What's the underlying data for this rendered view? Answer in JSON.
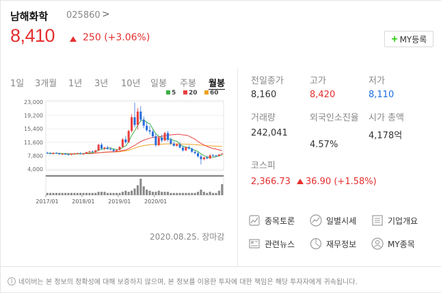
{
  "header": {
    "name": "남해화학",
    "code": "025860",
    "chevron": ">"
  },
  "price": {
    "current": "8,410",
    "change": "250",
    "change_pct": "(+3.06%)",
    "direction_color": "#e52e2e"
  },
  "my_button": {
    "plus": "+",
    "label": "MY등록"
  },
  "tabs": [
    {
      "label": "1일"
    },
    {
      "label": "3개월"
    },
    {
      "label": "1년"
    },
    {
      "label": "3년"
    },
    {
      "label": "10년"
    },
    {
      "label": "일봉"
    },
    {
      "label": "주봉"
    },
    {
      "label": "월봉"
    }
  ],
  "selected_tab": "월봉",
  "legend": [
    {
      "label": "5",
      "color": "#3cb044"
    },
    {
      "label": "20",
      "color": "#e84040"
    },
    {
      "label": "60",
      "color": "#f0a020"
    }
  ],
  "chart_data": {
    "type": "candlestick",
    "y_ticks": [
      "23,000",
      "19,200",
      "15,400",
      "11,600",
      "7,800",
      "4,000"
    ],
    "ylim": [
      4000,
      23000
    ],
    "x_ticks": [
      "2017/01",
      "2018/01",
      "2019/01",
      "2020/01"
    ],
    "series_note": "monthly candles with 5/20/60 moving averages",
    "ohlc": [
      [
        8600,
        8900,
        8300,
        8500
      ],
      [
        8500,
        8800,
        8200,
        8300
      ],
      [
        8300,
        8700,
        8100,
        8600
      ],
      [
        8600,
        8800,
        8300,
        8400
      ],
      [
        8400,
        8700,
        8100,
        8200
      ],
      [
        8200,
        8500,
        8000,
        8300
      ],
      [
        8300,
        8600,
        8100,
        8200
      ],
      [
        8200,
        8400,
        7900,
        8100
      ],
      [
        8100,
        8400,
        7900,
        8300
      ],
      [
        8300,
        8600,
        8100,
        8400
      ],
      [
        8400,
        8700,
        8200,
        8500
      ],
      [
        8500,
        8800,
        8200,
        8300
      ],
      [
        8300,
        8600,
        8000,
        8400
      ],
      [
        8400,
        8900,
        8300,
        8800
      ],
      [
        8800,
        9200,
        8600,
        9000
      ],
      [
        9000,
        9300,
        8700,
        8800
      ],
      [
        8800,
        9400,
        8700,
        9300
      ],
      [
        9300,
        11200,
        9100,
        10900
      ],
      [
        10900,
        11400,
        9600,
        9800
      ],
      [
        9800,
        10300,
        9300,
        10100
      ],
      [
        10100,
        10600,
        9500,
        9700
      ],
      [
        9700,
        10200,
        9300,
        9500
      ],
      [
        9500,
        9900,
        8900,
        9100
      ],
      [
        9100,
        9600,
        8800,
        9400
      ],
      [
        9400,
        10500,
        9300,
        10300
      ],
      [
        10300,
        12800,
        10100,
        12400
      ],
      [
        12400,
        13300,
        11200,
        11600
      ],
      [
        11600,
        15200,
        11400,
        14800
      ],
      [
        14800,
        19600,
        14400,
        18700
      ],
      [
        18700,
        22800,
        15800,
        16500
      ],
      [
        16500,
        21300,
        15200,
        20300
      ],
      [
        20300,
        21800,
        17400,
        18000
      ],
      [
        18000,
        18900,
        15600,
        16300
      ],
      [
        16300,
        17400,
        14600,
        15000
      ],
      [
        15000,
        16200,
        13800,
        14600
      ],
      [
        14600,
        15100,
        12800,
        13300
      ],
      [
        13300,
        14100,
        10300,
        10800
      ],
      [
        10800,
        13400,
        10500,
        12900
      ],
      [
        12900,
        13800,
        11600,
        12100
      ],
      [
        12100,
        14600,
        11900,
        14200
      ],
      [
        14200,
        14800,
        11800,
        12300
      ],
      [
        12300,
        12900,
        10900,
        11200
      ],
      [
        11200,
        11800,
        10400,
        10600
      ],
      [
        10600,
        11300,
        10300,
        11000
      ],
      [
        11000,
        11600,
        9800,
        10100
      ],
      [
        10100,
        10600,
        9000,
        9300
      ],
      [
        9300,
        10400,
        9100,
        10200
      ],
      [
        10200,
        10700,
        9500,
        9800
      ],
      [
        9800,
        10100,
        8600,
        8900
      ],
      [
        8900,
        9300,
        8200,
        8500
      ],
      [
        8500,
        8900,
        7300,
        7600
      ],
      [
        7600,
        8100,
        5300,
        6800
      ],
      [
        6800,
        7500,
        6500,
        7300
      ],
      [
        7300,
        7800,
        6800,
        7000
      ],
      [
        7000,
        8200,
        6900,
        7900
      ],
      [
        7900,
        8300,
        7500,
        7800
      ],
      [
        7800,
        8100,
        7400,
        7700
      ],
      [
        7700,
        8200,
        7600,
        8160
      ],
      [
        8160,
        8420,
        8110,
        8410
      ]
    ],
    "volume": [
      2,
      2,
      2,
      2,
      2,
      2,
      2,
      2,
      2,
      2,
      2,
      2,
      2,
      2,
      2,
      2,
      2,
      3,
      3,
      3,
      2,
      2,
      2,
      2,
      2,
      3,
      4,
      3,
      4,
      6,
      9,
      15,
      8,
      5,
      4,
      3,
      3,
      4,
      3,
      3,
      3,
      2,
      2,
      2,
      2,
      2,
      2,
      2,
      2,
      2,
      3,
      5,
      3,
      2,
      3,
      2,
      2,
      4,
      10
    ],
    "ma5_color": "#3cb044",
    "ma20_color": "#e84040",
    "ma60_color": "#f0a020"
  },
  "date_note": "2020.08.25. 장마감",
  "stats": [
    {
      "label": "전일종가",
      "value": "8,160",
      "color": "#333333"
    },
    {
      "label": "고가",
      "value": "8,420",
      "color": "#e52e2e"
    },
    {
      "label": "저가",
      "value": "8,110",
      "color": "#1d6fe0"
    },
    {
      "label": "거래량",
      "value": "242,041",
      "color": "#333333"
    },
    {
      "label": "외국인소진율",
      "value": "4.57%",
      "color": "#333333"
    },
    {
      "label": "시가 총액",
      "value": "4,178억",
      "color": "#333333"
    }
  ],
  "kospi": {
    "label": "코스피",
    "value": "2,366.73",
    "change": "36.90",
    "change_pct": "(+1.58%)"
  },
  "quick_links": [
    {
      "label": "종목토론",
      "icon": "chat-chart-icon"
    },
    {
      "label": "일별시세",
      "icon": "trend-line-icon"
    },
    {
      "label": "기업개요",
      "icon": "list-doc-icon"
    },
    {
      "label": "관련뉴스",
      "icon": "news-icon"
    },
    {
      "label": "재무정보",
      "icon": "pie-chart-icon"
    },
    {
      "label": "MY종목",
      "icon": "user-icon"
    }
  ],
  "notice": "네이버는 본 정보의 정확성에 대해 보증하지 않으며, 본 정보를 이용한 투자에 대한 책임은 해당 투자자에게 귀속됩니다."
}
